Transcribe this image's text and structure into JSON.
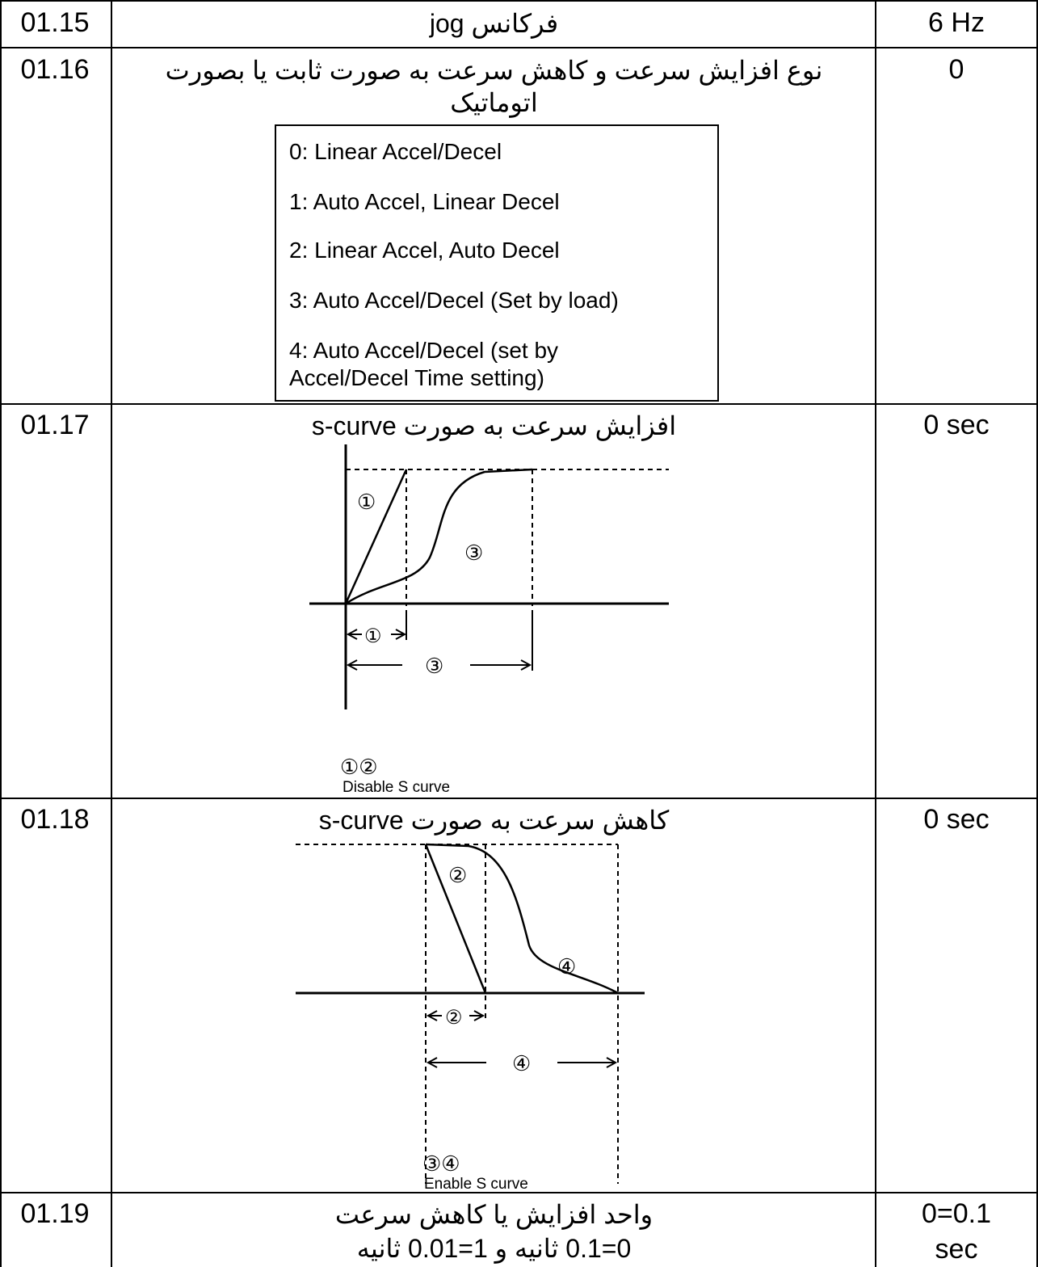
{
  "rows": [
    {
      "code": "01.15",
      "title": "فرکانس jog",
      "value": "6 Hz"
    },
    {
      "code": "01.16",
      "title_line1": "نوع افزایش سرعت و کاهش سرعت به صورت ثابت یا بصورت",
      "title_line2": "اتوماتیک",
      "value": "0",
      "options": [
        "0: Linear Accel/Decel",
        "1: Auto Accel, Linear Decel",
        "2: Linear Accel, Auto Decel",
        "3: Auto Accel/Decel (Set by load)",
        "4: Auto Accel/Decel  (set by",
        "Accel/Decel Time setting)"
      ]
    },
    {
      "code": "01.17",
      "title": "افزایش سرعت به صورت s-curve",
      "value": "0 sec",
      "figure": {
        "markers": [
          "①",
          "③",
          "①",
          "③"
        ],
        "caption_marks": "①②",
        "caption": "Disable S curve"
      }
    },
    {
      "code": "01.18",
      "title": "کاهش سرعت به صورت s-curve",
      "value": "0 sec",
      "figure": {
        "markers": [
          "②",
          "④",
          "②",
          "④"
        ],
        "caption_marks": "③④",
        "caption": "Enable S curve"
      }
    },
    {
      "code": "01.19",
      "title_line1": "واحد افزایش یا کاهش سرعت",
      "title_line2": "0=0.1 ثانیه و 1=0.01 ثانیه",
      "value_line1": "0=0.1",
      "value_line2": "sec"
    }
  ]
}
